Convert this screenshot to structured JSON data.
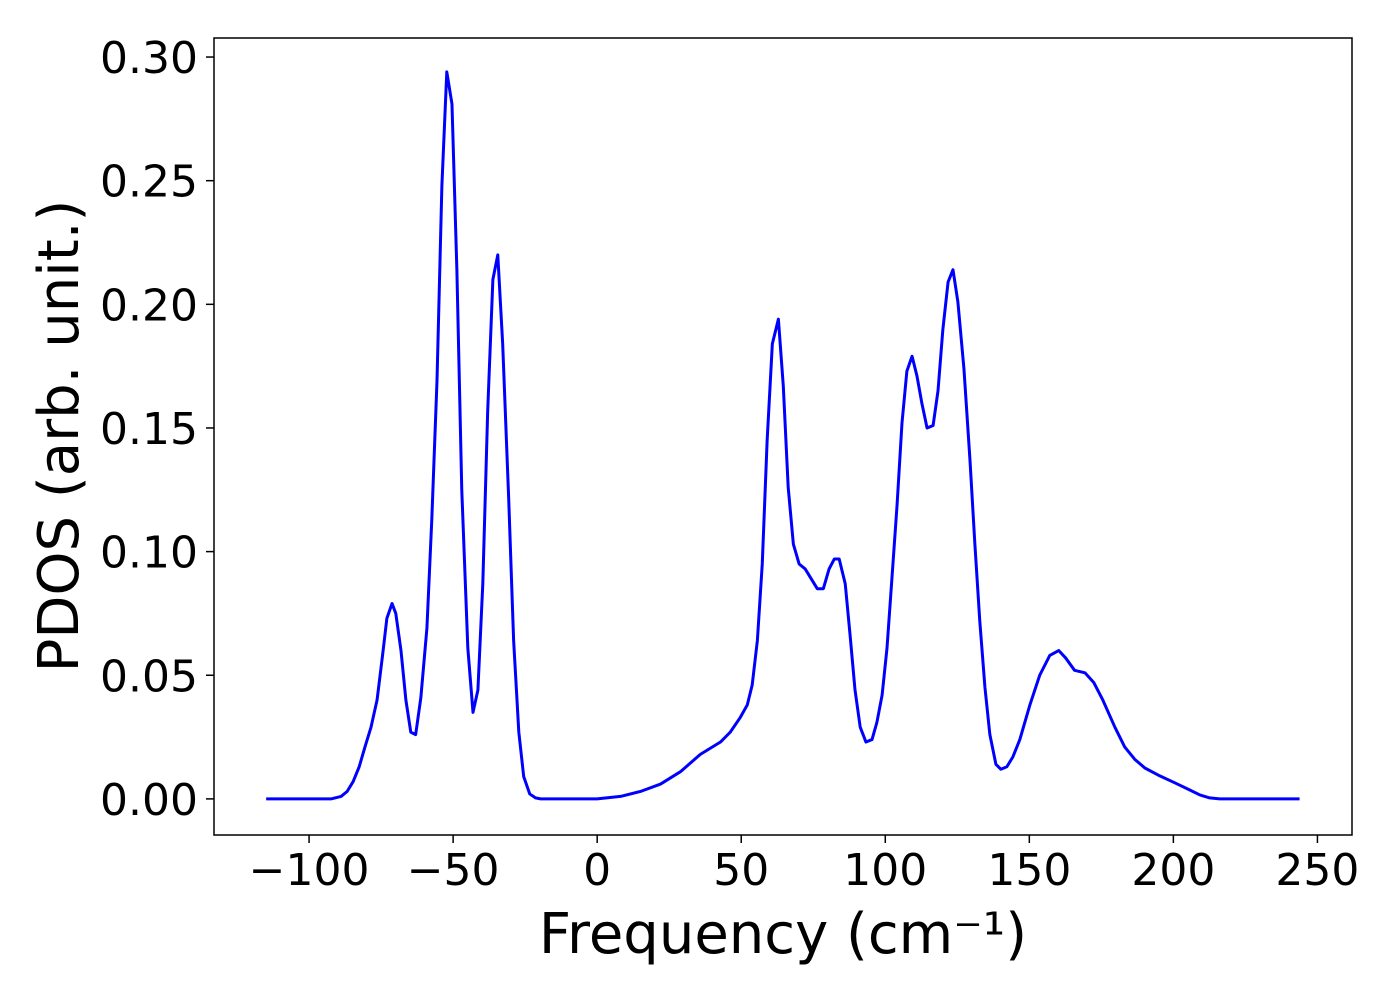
{
  "chart_data": {
    "type": "line",
    "x_label": "Frequency (cm⁻¹)",
    "y_label": "PDOS (arb. unit.)",
    "xlim": [
      -133,
      262
    ],
    "ylim": [
      -0.0146,
      0.3077
    ],
    "xticks": [
      {
        "value": -100,
        "label": "−100"
      },
      {
        "value": -50,
        "label": "−50"
      },
      0,
      50,
      100,
      150,
      200,
      250
    ],
    "yticks": [
      {
        "value": 0,
        "label": "0.00"
      },
      {
        "value": 0.05,
        "label": "0.05"
      },
      {
        "value": 0.1,
        "label": "0.10"
      },
      {
        "value": 0.15,
        "label": "0.15"
      },
      {
        "value": 0.2,
        "label": "0.20"
      },
      {
        "value": 0.25,
        "label": "0.25"
      },
      {
        "value": 0.3,
        "label": "0.30"
      }
    ],
    "grid": false,
    "x": [
      -114.9,
      -92.4,
      -88.9,
      -86.8,
      -84.7,
      -82.6,
      -80.6,
      -78.5,
      -76.4,
      -74.4,
      -73.0,
      -71.2,
      -69.9,
      -68.1,
      -66.4,
      -64.7,
      -63.0,
      -61.2,
      -59.1,
      -57.4,
      -55.6,
      -53.9,
      -52.2,
      -50.4,
      -48.7,
      -47.0,
      -44.9,
      -43.1,
      -41.4,
      -39.7,
      -38.0,
      -36.2,
      -34.5,
      -32.8,
      -30.7,
      -29.0,
      -27.2,
      -25.5,
      -23.4,
      -21.4,
      -19.6,
      0,
      8.1,
      15.0,
      22.0,
      28.9,
      35.8,
      42.8,
      46.2,
      49.7,
      52.1,
      53.8,
      55.6,
      57.3,
      59.0,
      60.8,
      62.9,
      64.6,
      66.3,
      68.1,
      70.1,
      72.2,
      74.3,
      76.4,
      78.5,
      80.5,
      82.3,
      84.0,
      86.1,
      87.8,
      89.5,
      91.3,
      93.3,
      95.4,
      97.1,
      98.9,
      100.6,
      102.3,
      104.1,
      105.8,
      107.5,
      109.3,
      111.0,
      112.7,
      114.5,
      116.6,
      118.3,
      120.0,
      121.8,
      123.5,
      125.2,
      127.3,
      129.4,
      131.1,
      132.8,
      134.6,
      136.3,
      138.4,
      140.1,
      142.2,
      144.3,
      146.7,
      150.2,
      153.6,
      157.1,
      160.2,
      162.6,
      165.7,
      169.3,
      172.4,
      175.5,
      179.7,
      183.1,
      186.6,
      190.1,
      195.3,
      200.5,
      205.7,
      209.2,
      212.6,
      216.1,
      243.8
    ],
    "series": [
      {
        "name": "PDOS",
        "color": "#0000ff",
        "values": [
          0,
          0,
          0.001,
          0.003,
          0.007,
          0.013,
          0.021,
          0.029,
          0.04,
          0.059,
          0.073,
          0.079,
          0.075,
          0.06,
          0.04,
          0.027,
          0.026,
          0.041,
          0.069,
          0.113,
          0.169,
          0.248,
          0.294,
          0.281,
          0.214,
          0.125,
          0.061,
          0.035,
          0.044,
          0.087,
          0.157,
          0.21,
          0.22,
          0.184,
          0.121,
          0.064,
          0.027,
          0.009,
          0.002,
          0.0004,
          0,
          0,
          0.001,
          0.003,
          0.006,
          0.011,
          0.018,
          0.023,
          0.027,
          0.033,
          0.038,
          0.046,
          0.064,
          0.095,
          0.145,
          0.184,
          0.194,
          0.167,
          0.126,
          0.103,
          0.095,
          0.093,
          0.089,
          0.085,
          0.085,
          0.093,
          0.097,
          0.097,
          0.087,
          0.066,
          0.044,
          0.029,
          0.023,
          0.024,
          0.031,
          0.042,
          0.061,
          0.089,
          0.119,
          0.152,
          0.173,
          0.179,
          0.171,
          0.16,
          0.15,
          0.151,
          0.165,
          0.19,
          0.209,
          0.214,
          0.201,
          0.174,
          0.137,
          0.103,
          0.072,
          0.045,
          0.026,
          0.014,
          0.012,
          0.013,
          0.017,
          0.024,
          0.038,
          0.05,
          0.058,
          0.06,
          0.057,
          0.052,
          0.051,
          0.047,
          0.04,
          0.029,
          0.021,
          0.016,
          0.0125,
          0.0093,
          0.0065,
          0.0036,
          0.0016,
          0.0004,
          0,
          0
        ]
      }
    ]
  }
}
